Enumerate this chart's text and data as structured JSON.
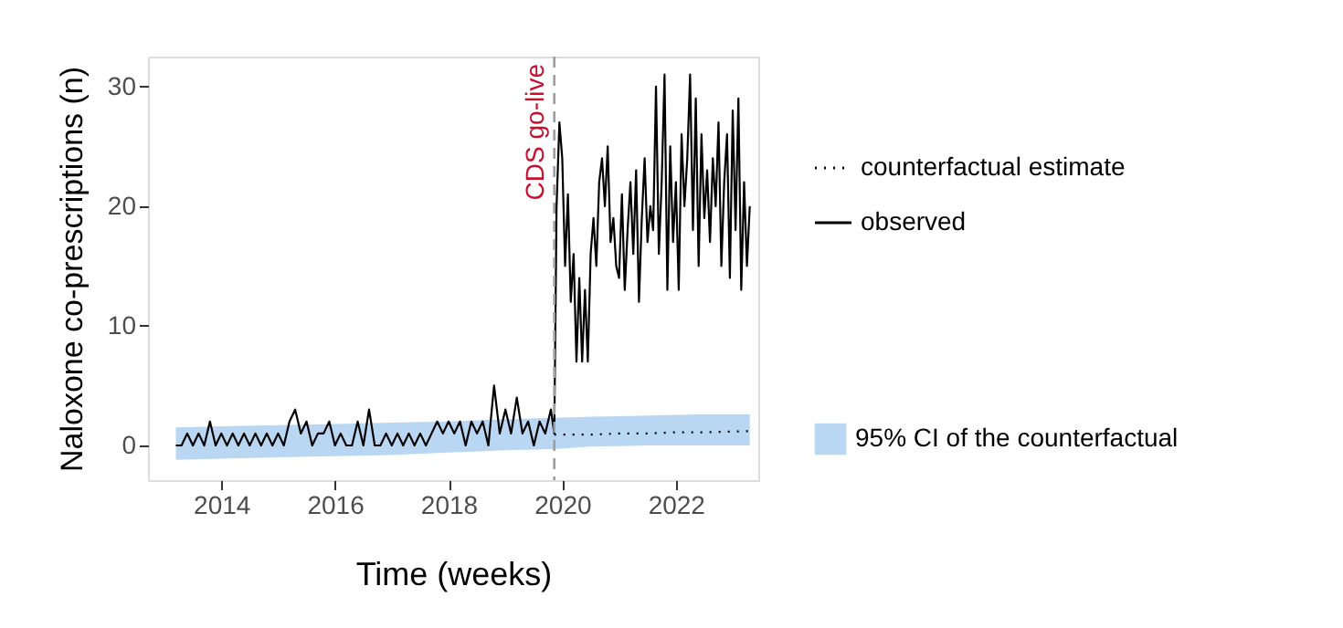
{
  "chart_data": {
    "type": "line",
    "xlabel": "Time (weeks)",
    "ylabel": "Naloxone co-prescriptions (n)",
    "xlim": [
      2012.71,
      2023.45
    ],
    "xticks": [
      2014,
      2016,
      2018,
      2020,
      2022
    ],
    "ylim": [
      -2.9,
      32.5
    ],
    "yticks": [
      0,
      10,
      20,
      30
    ],
    "grid": false,
    "legend": "right",
    "annotations": [
      "95% CI of the counterfactual"
    ],
    "ref_lines": [
      {
        "axis": "x",
        "value": 2019.86,
        "label": "CDS go-live",
        "color": "#9e9e9e",
        "line_style": "dashed"
      }
    ],
    "series": [
      {
        "name": "counterfactual estimate",
        "type": "line",
        "color": "#000000",
        "line_style": "dotted",
        "x": [
          2013.2,
          2014,
          2015,
          2016,
          2017,
          2018,
          2019,
          2019.86,
          2020.5,
          2021,
          2021.5,
          2022,
          2022.5,
          2023.3
        ],
        "values": [
          null,
          null,
          null,
          null,
          null,
          null,
          null,
          0.9,
          0.9,
          1.0,
          1.0,
          1.1,
          1.1,
          1.2
        ],
        "lower": [
          -1.2,
          -1.1,
          -1.0,
          -0.9,
          -0.8,
          -0.6,
          -0.4,
          -0.3,
          -0.1,
          -0.05,
          0,
          0,
          0,
          0
        ],
        "upper": [
          1.5,
          1.6,
          1.7,
          1.8,
          1.9,
          2.0,
          2.2,
          2.3,
          2.4,
          2.45,
          2.5,
          2.55,
          2.6,
          2.6
        ]
      },
      {
        "name": "observed",
        "type": "line",
        "color": "#000000",
        "line_style": "solid",
        "x": [
          2013.2,
          2013.3,
          2013.4,
          2013.5,
          2013.6,
          2013.7,
          2013.8,
          2013.9,
          2014.0,
          2014.1,
          2014.2,
          2014.3,
          2014.4,
          2014.5,
          2014.6,
          2014.7,
          2014.8,
          2014.9,
          2015.0,
          2015.1,
          2015.2,
          2015.3,
          2015.4,
          2015.5,
          2015.6,
          2015.7,
          2015.8,
          2015.9,
          2016.0,
          2016.1,
          2016.2,
          2016.3,
          2016.4,
          2016.5,
          2016.6,
          2016.7,
          2016.8,
          2016.9,
          2017.0,
          2017.1,
          2017.2,
          2017.3,
          2017.4,
          2017.5,
          2017.6,
          2017.7,
          2017.8,
          2017.9,
          2018.0,
          2018.1,
          2018.2,
          2018.3,
          2018.4,
          2018.5,
          2018.6,
          2018.7,
          2018.8,
          2018.9,
          2019.0,
          2019.1,
          2019.2,
          2019.3,
          2019.4,
          2019.5,
          2019.6,
          2019.7,
          2019.8,
          2019.86,
          2019.9,
          2019.95,
          2020.0,
          2020.05,
          2020.1,
          2020.15,
          2020.2,
          2020.25,
          2020.3,
          2020.35,
          2020.4,
          2020.45,
          2020.5,
          2020.55,
          2020.6,
          2020.65,
          2020.7,
          2020.75,
          2020.8,
          2020.85,
          2020.9,
          2020.95,
          2021.0,
          2021.05,
          2021.1,
          2021.15,
          2021.2,
          2021.25,
          2021.3,
          2021.35,
          2021.4,
          2021.45,
          2021.5,
          2021.55,
          2021.6,
          2021.65,
          2021.7,
          2021.75,
          2021.8,
          2021.85,
          2021.9,
          2021.95,
          2022.0,
          2022.05,
          2022.1,
          2022.15,
          2022.2,
          2022.25,
          2022.3,
          2022.35,
          2022.4,
          2022.45,
          2022.5,
          2022.55,
          2022.6,
          2022.65,
          2022.7,
          2022.75,
          2022.8,
          2022.85,
          2022.9,
          2022.95,
          2023.0,
          2023.05,
          2023.1,
          2023.15,
          2023.2,
          2023.25,
          2023.3
        ],
        "values": [
          0,
          0,
          1,
          0,
          1,
          0,
          2,
          0,
          1,
          0,
          1,
          0,
          1,
          0,
          1,
          0,
          1,
          0,
          1,
          0,
          2,
          3,
          1,
          2,
          0,
          1,
          1,
          2,
          0,
          1,
          0,
          0,
          2,
          0,
          3,
          0,
          0,
          1,
          0,
          1,
          0,
          1,
          0,
          1,
          0,
          1,
          2,
          1,
          2,
          1,
          2,
          0,
          2,
          1,
          2,
          0,
          5,
          1,
          3,
          1,
          4,
          1,
          2,
          0,
          2,
          1,
          3,
          1,
          20,
          27,
          24,
          15,
          21,
          12,
          16,
          7,
          14,
          7,
          13,
          7,
          16,
          19,
          15,
          22,
          24,
          20,
          25,
          17,
          19,
          15,
          14,
          21,
          13,
          18,
          22,
          16,
          23,
          12,
          19,
          24,
          17,
          20,
          18,
          30,
          16,
          22,
          31,
          13,
          25,
          17,
          22,
          13,
          26,
          20,
          24,
          31,
          18,
          29,
          15,
          26,
          19,
          23,
          17,
          24,
          20,
          27,
          15,
          22,
          26,
          14,
          28,
          18,
          29,
          13,
          22,
          15,
          20
        ]
      }
    ]
  }
}
